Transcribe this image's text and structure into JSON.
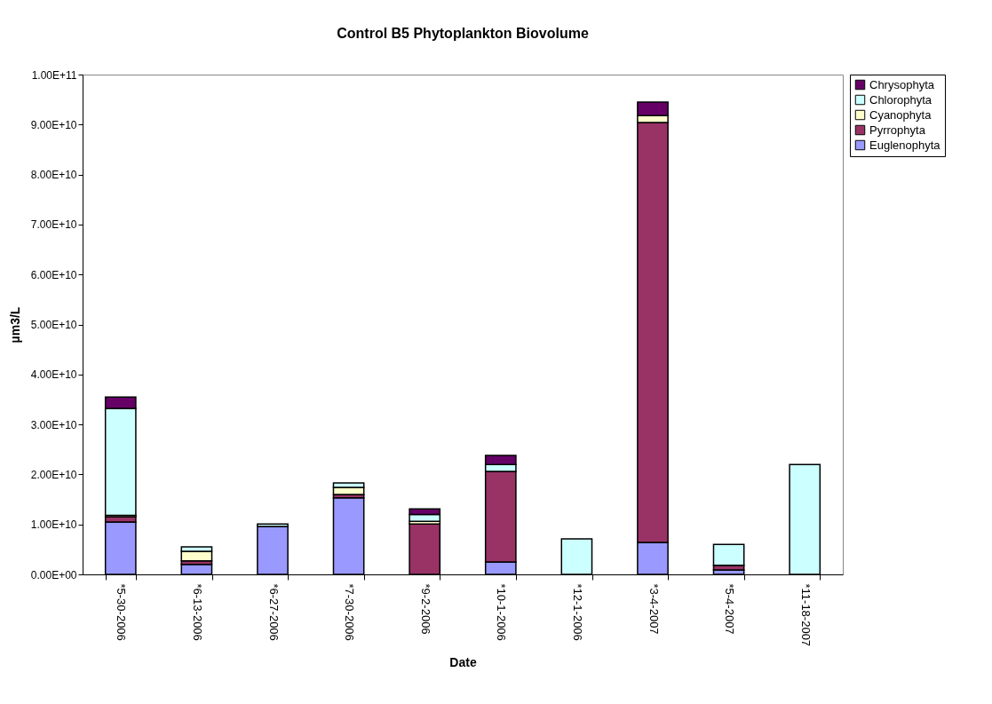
{
  "chart_data": {
    "type": "bar",
    "title": "Control B5 Phytoplankton Biovolume",
    "xlabel": "Date",
    "ylabel": "µm3/L",
    "categories": [
      "*5-30-2006",
      "*6-13-2006",
      "*6-27-2006",
      "*7-30-2006",
      "*9-2-2006",
      "*10-1-2006",
      "*12-1-2006",
      "*3-4-2007",
      "*5-4-2007",
      "*11-18-2007"
    ],
    "stacked": true,
    "series": [
      {
        "name": "Euglenophyta",
        "color": "#9999ff",
        "values": [
          10500000000.0,
          2000000000.0,
          9600000000.0,
          15300000000.0,
          null,
          2500000000.0,
          null,
          6400000000.0,
          900000000.0,
          null
        ]
      },
      {
        "name": "Pyrrophyta",
        "color": "#993366",
        "values": [
          1000000000.0,
          700000000.0,
          null,
          700000000.0,
          10100000000.0,
          18100000000.0,
          null,
          84000000000.0,
          900000000.0,
          null
        ]
      },
      {
        "name": "Cyanophyta",
        "color": "#ffffcc",
        "values": [
          300000000.0,
          1900000000.0,
          null,
          1400000000.0,
          500000000.0,
          null,
          null,
          1400000000.0,
          null,
          null
        ]
      },
      {
        "name": "Chlorophyta",
        "color": "#ccffff",
        "values": [
          21400000000.0,
          900000000.0,
          500000000.0,
          900000000.0,
          1400000000.0,
          1400000000.0,
          7100000000.0,
          null,
          4200000000.0,
          22000000000.0
        ]
      },
      {
        "name": "Chrysophyta",
        "color": "#660066",
        "values": [
          2300000000.0,
          null,
          null,
          null,
          1100000000.0,
          1800000000.0,
          null,
          2700000000.0,
          null,
          null
        ]
      }
    ],
    "ylim": [
      0,
      100000000000.0
    ],
    "yticks": [
      {
        "value": 0,
        "label": "0.00E+00"
      },
      {
        "value": 10000000000.0,
        "label": "1.00E+10"
      },
      {
        "value": 20000000000.0,
        "label": "2.00E+10"
      },
      {
        "value": 30000000000.0,
        "label": "3.00E+10"
      },
      {
        "value": 40000000000.0,
        "label": "4.00E+10"
      },
      {
        "value": 50000000000.0,
        "label": "5.00E+10"
      },
      {
        "value": 60000000000.0,
        "label": "6.00E+10"
      },
      {
        "value": 70000000000.0,
        "label": "7.00E+10"
      },
      {
        "value": 80000000000.0,
        "label": "8.00E+10"
      },
      {
        "value": 90000000000.0,
        "label": "9.00E+10"
      },
      {
        "value": 100000000000.0,
        "label": "1.00E+11"
      }
    ],
    "grid": false,
    "legend": "right"
  }
}
